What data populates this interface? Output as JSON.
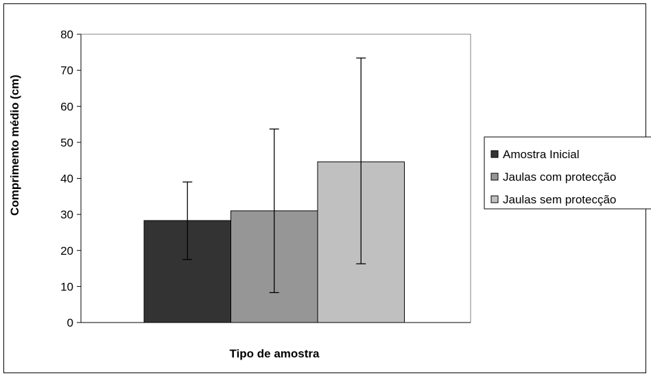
{
  "chart_data": {
    "type": "bar",
    "title": "",
    "xlabel": "Tipo de amostra",
    "ylabel": "Comprimento médio (cm)",
    "ylim": [
      0,
      80
    ],
    "yticks": [
      0,
      10,
      20,
      30,
      40,
      50,
      60,
      70,
      80
    ],
    "grid": false,
    "legend_position": "right",
    "categories": [
      ""
    ],
    "series": [
      {
        "name": "Amostra Inicial",
        "values": [
          28.3
        ],
        "error_low": [
          17.5
        ],
        "error_high": [
          39.0
        ],
        "color": "#333333"
      },
      {
        "name": "Jaulas com protecção",
        "values": [
          31.0
        ],
        "error_low": [
          8.3
        ],
        "error_high": [
          53.7
        ],
        "color": "#969696"
      },
      {
        "name": "Jaulas sem protecção",
        "values": [
          44.6
        ],
        "error_low": [
          16.3
        ],
        "error_high": [
          73.4
        ],
        "color": "#c0c0c0"
      }
    ],
    "plot_background": "#ffffff",
    "plot_border_color": "#808080"
  }
}
